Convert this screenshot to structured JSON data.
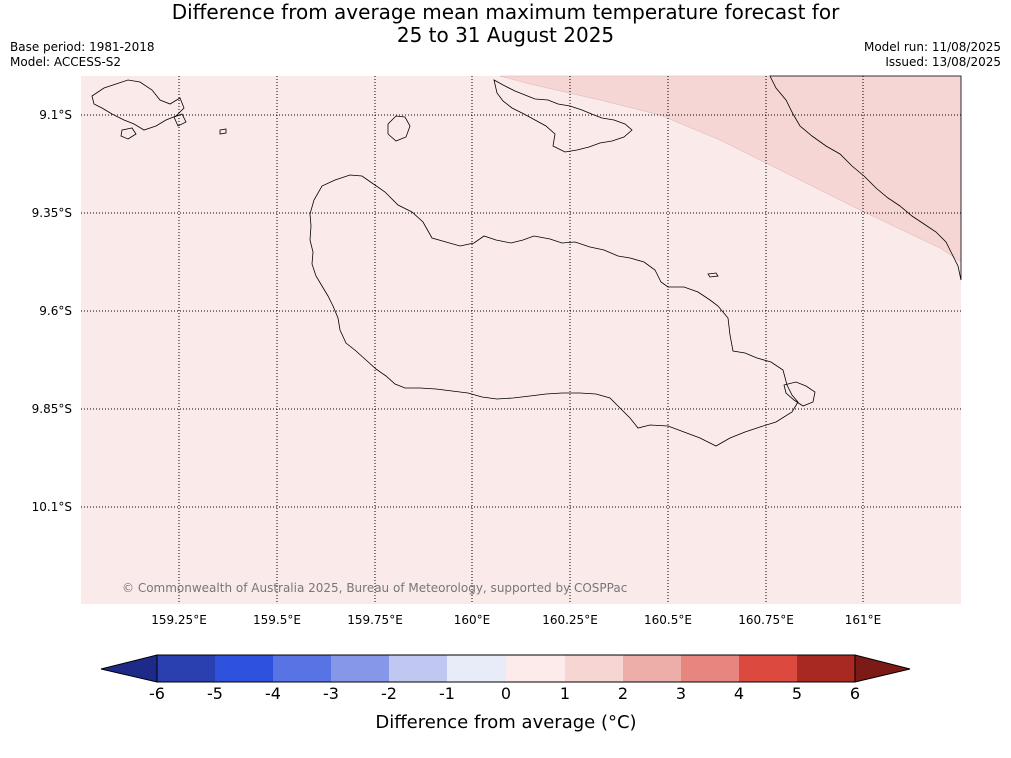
{
  "title_line1": "Difference from average mean maximum temperature forecast for",
  "title_line2": "25 to 31 August 2025",
  "base_period": "Base period: 1981-2018",
  "model": "Model: ACCESS-S2",
  "model_run": "Model run: 11/08/2025",
  "issued": "Issued: 13/08/2025",
  "copyright": "© Commonwealth of Australia 2025, Bureau of Meteorology, supported by COSPPac",
  "lat_labels": [
    "9.1°S",
    "9.35°S",
    "9.6°S",
    "9.85°S",
    "10.1°S"
  ],
  "lon_labels": [
    "159.25°E",
    "159.5°E",
    "159.75°E",
    "160°E",
    "160.25°E",
    "160.5°E",
    "160.75°E",
    "161°E"
  ],
  "colorbar": {
    "label": "Difference from average (°C)",
    "ticks": [
      "-6",
      "-5",
      "-4",
      "-3",
      "-2",
      "-1",
      "0",
      "1",
      "2",
      "3",
      "4",
      "5",
      "6"
    ],
    "colors": [
      "#1e2a8a",
      "#2a3fb0",
      "#2f52de",
      "#5873e4",
      "#8697ea",
      "#c0c8f2",
      "#e8ecf9",
      "#fdebeb",
      "#f6d5d3",
      "#edaeaa",
      "#e6867f",
      "#dc4a3f",
      "#a82922",
      "#7c1a16"
    ]
  },
  "map": {
    "background_class": "0 to 1",
    "background_color": "#fbeaea",
    "warm_region_class": "1 to 2",
    "warm_region_color": "#f5d6d5"
  }
}
